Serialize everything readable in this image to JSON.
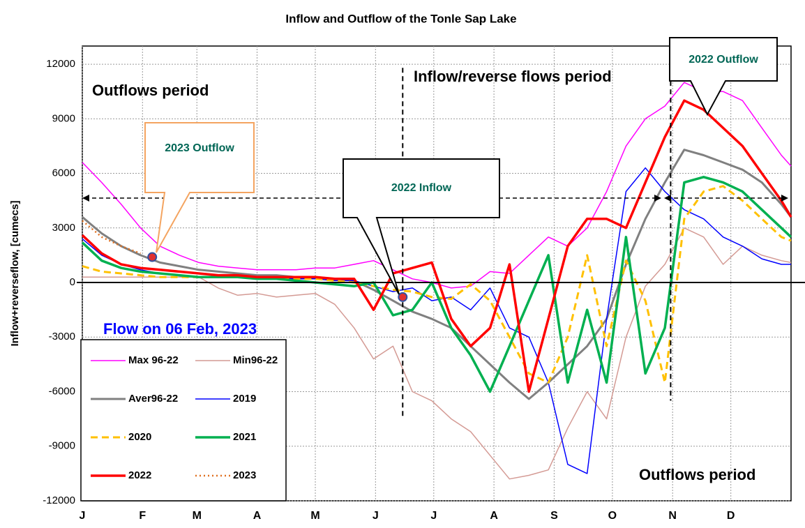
{
  "chart_data": {
    "type": "line",
    "title": "Inflow and Outflow of the Tonle Sap Lake",
    "y_label": "Inflow+reverseflow, [cumecs]",
    "xlim": [
      0,
      365
    ],
    "ylim": [
      -12000,
      13000
    ],
    "xticks": [
      {
        "value": 0,
        "label": "J"
      },
      {
        "value": 31,
        "label": "F"
      },
      {
        "value": 59,
        "label": "M"
      },
      {
        "value": 90,
        "label": "A"
      },
      {
        "value": 120,
        "label": "M"
      },
      {
        "value": 151,
        "label": "J"
      },
      {
        "value": 181,
        "label": "J"
      },
      {
        "value": 212,
        "label": "A"
      },
      {
        "value": 243,
        "label": "S"
      },
      {
        "value": 273,
        "label": "O"
      },
      {
        "value": 304,
        "label": "N"
      },
      {
        "value": 334,
        "label": "D"
      }
    ],
    "yticks": [
      -12000,
      -9000,
      -6000,
      -3000,
      0,
      3000,
      6000,
      9000,
      12000
    ],
    "grid": true,
    "x": [
      0,
      10,
      20,
      30,
      40,
      50,
      60,
      70,
      80,
      90,
      100,
      110,
      120,
      130,
      140,
      150,
      160,
      170,
      180,
      190,
      200,
      210,
      220,
      230,
      240,
      250,
      260,
      270,
      280,
      290,
      300,
      310,
      320,
      330,
      340,
      350,
      360,
      365
    ],
    "series": [
      {
        "name": "Max 96-22",
        "color": "#ff00ff",
        "width": 1.5,
        "style": "solid",
        "values": [
          6600,
          5500,
          4300,
          3000,
          2000,
          1500,
          1100,
          900,
          800,
          700,
          700,
          700,
          800,
          800,
          1000,
          1200,
          700,
          200,
          0,
          -300,
          -200,
          600,
          500,
          1500,
          2500,
          2000,
          3000,
          5000,
          7500,
          9000,
          9700,
          11000,
          10500,
          10500,
          10000,
          8500,
          7000,
          6400
        ]
      },
      {
        "name": "Min96-22",
        "color": "#d49a94",
        "width": 1.5,
        "style": "solid",
        "values": [
          300,
          300,
          300,
          300,
          300,
          300,
          300,
          -300,
          -700,
          -600,
          -800,
          -700,
          -600,
          -1200,
          -2500,
          -4200,
          -3500,
          -6000,
          -6500,
          -7500,
          -8200,
          -9500,
          -10800,
          -10600,
          -10300,
          -8000,
          -6000,
          -7500,
          -3000,
          -200,
          1000,
          3000,
          2500,
          1000,
          2000,
          1500,
          1200,
          1100
        ]
      },
      {
        "name": "Aver96-22",
        "color": "#808080",
        "width": 3,
        "style": "solid",
        "values": [
          3600,
          2700,
          2000,
          1500,
          1100,
          900,
          700,
          600,
          500,
          400,
          400,
          300,
          300,
          200,
          100,
          -400,
          -1000,
          -1600,
          -2000,
          -2500,
          -3500,
          -4500,
          -5500,
          -6400,
          -5500,
          -4500,
          -3500,
          -2000,
          1000,
          3500,
          5500,
          7300,
          7000,
          6600,
          6200,
          5500,
          4300,
          3600
        ]
      },
      {
        "name": "2019",
        "color": "#0000ff",
        "width": 1.5,
        "style": "solid",
        "values": [
          2400,
          1500,
          1000,
          700,
          500,
          400,
          300,
          300,
          300,
          200,
          200,
          200,
          200,
          100,
          100,
          -200,
          -500,
          -300,
          -1000,
          -800,
          -1500,
          -300,
          -2500,
          -3000,
          -5500,
          -10000,
          -10500,
          -2000,
          5000,
          6300,
          5000,
          4000,
          3500,
          2500,
          2000,
          1300,
          1000,
          1000
        ]
      },
      {
        "name": "2020",
        "color": "#ffc000",
        "width": 3,
        "style": "dashed",
        "values": [
          900,
          600,
          500,
          400,
          300,
          300,
          300,
          300,
          300,
          300,
          200,
          200,
          200,
          100,
          0,
          -200,
          -400,
          -500,
          -800,
          -900,
          -100,
          -1000,
          -3000,
          -5000,
          -5500,
          -3000,
          1500,
          -3500,
          1200,
          -1000,
          -5500,
          3500,
          5000,
          5300,
          4500,
          3500,
          2500,
          2300
        ]
      },
      {
        "name": "2021",
        "color": "#00b050",
        "width": 3.5,
        "style": "solid",
        "values": [
          2200,
          1200,
          800,
          600,
          500,
          400,
          300,
          300,
          300,
          200,
          200,
          100,
          0,
          -100,
          -200,
          0,
          -1800,
          -1500,
          0,
          -2500,
          -4000,
          -6000,
          -3500,
          -1000,
          1500,
          -5500,
          -1500,
          -5500,
          2500,
          -5000,
          -2500,
          5500,
          5800,
          5500,
          5000,
          4000,
          3000,
          2500
        ]
      },
      {
        "name": "2022",
        "color": "#ff0000",
        "width": 3.5,
        "style": "solid",
        "values": [
          2600,
          1600,
          1000,
          800,
          700,
          600,
          500,
          400,
          400,
          300,
          300,
          300,
          300,
          200,
          200,
          -1500,
          500,
          800,
          1100,
          -2000,
          -3500,
          -2500,
          1000,
          -6000,
          -2000,
          2000,
          3500,
          3500,
          3000,
          5500,
          8000,
          10000,
          9500,
          8500,
          7500,
          6000,
          4500,
          3600
        ]
      },
      {
        "name": "2023",
        "color": "#e07020",
        "width": 2.5,
        "style": "dotted",
        "values": [
          3400,
          2500,
          2000,
          1600,
          null,
          null,
          null,
          null,
          null,
          null,
          null,
          null,
          null,
          null,
          null,
          null,
          null,
          null,
          null,
          null,
          null,
          null,
          null,
          null,
          null,
          null,
          null,
          null,
          null,
          null,
          null,
          null,
          null,
          null,
          null,
          null,
          null,
          null
        ]
      }
    ],
    "markers": [
      {
        "x": 36,
        "y": 1400
      },
      {
        "x": 165,
        "y": -800
      }
    ],
    "vlines": [
      165,
      303
    ],
    "annotations": [
      "Outflows period",
      "Inflow/reverse flows period",
      "Outflows period",
      "2022 Outflow",
      "2023 Outflow",
      "2022 Inflow",
      "Flow on 06 Feb, 2023"
    ]
  }
}
